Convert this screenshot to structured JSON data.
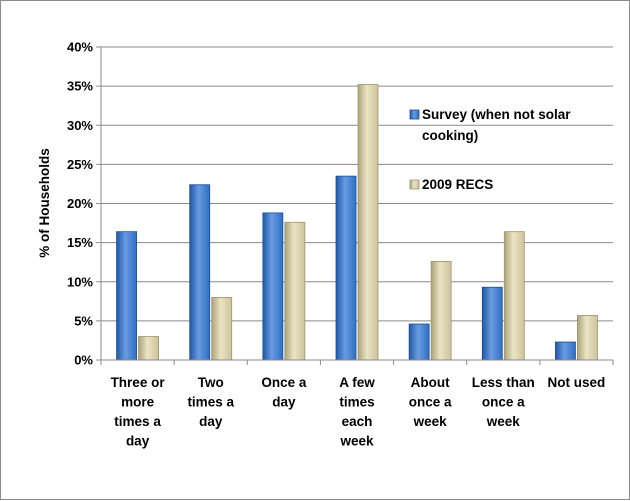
{
  "chart_data": {
    "type": "bar",
    "title": "",
    "ylabel": "% of Households",
    "xlabel": "",
    "ylim": [
      0,
      40
    ],
    "yticks": [
      "0%",
      "5%",
      "10%",
      "15%",
      "20%",
      "25%",
      "30%",
      "35%",
      "40%"
    ],
    "grid": true,
    "legend_position": "right",
    "categories": [
      [
        "Three or",
        "more",
        "times a",
        "day"
      ],
      [
        "Two",
        "times a",
        "day"
      ],
      [
        "Once a",
        "day"
      ],
      [
        "A few",
        "times",
        "each",
        "week"
      ],
      [
        "About",
        "once a",
        "week"
      ],
      [
        "Less than",
        "once a",
        "week"
      ],
      [
        "Not used"
      ]
    ],
    "series": [
      {
        "name_lines": [
          "Survey (when not solar",
          "cooking)"
        ],
        "color": "#2e6fc4",
        "values": [
          16.4,
          22.4,
          18.8,
          23.5,
          4.6,
          9.3,
          2.3
        ]
      },
      {
        "name_lines": [
          "2009 RECS"
        ],
        "color": "#ccc39a",
        "values": [
          3.0,
          8.0,
          17.6,
          35.2,
          12.6,
          16.4,
          5.7
        ]
      }
    ]
  }
}
